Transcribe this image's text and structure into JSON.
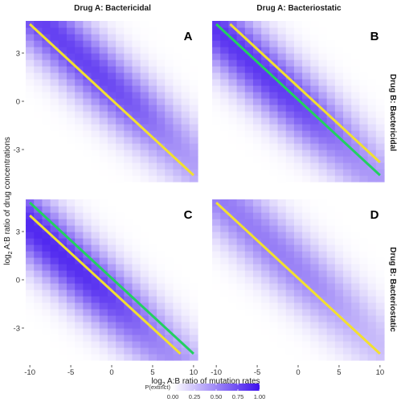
{
  "figure": {
    "col_strips": [
      "Drug A: Bactericidal",
      "Drug A: Bacteriostatic"
    ],
    "row_strips": [
      "Drug B: Bactericidal",
      "Drug B: Bacteriostatic"
    ],
    "xlabel_pre": "log",
    "xlabel_sub": "2",
    "xlabel_post": " A:B ratio of mutation rates",
    "ylabel_pre": "log",
    "ylabel_sub": "2",
    "ylabel_post": " A:B ratio of drug concentrations",
    "legend_title": "P(extinct)"
  },
  "colors": {
    "low": "#ffffff",
    "high": "#3d10ee",
    "yellow_line": "#f2e030",
    "green_line": "#22d060"
  },
  "chart_data": {
    "type": "heatmap",
    "x_ticks": [
      -10,
      -5,
      0,
      5,
      10
    ],
    "x_tick_labels": [
      "-10",
      "-5",
      "0",
      "5",
      "10"
    ],
    "y_ticks": [
      -3,
      0,
      3
    ],
    "y_tick_labels": [
      "-3",
      "0",
      "3"
    ],
    "xlim": [
      -10.7,
      10.7
    ],
    "ylim": [
      -5.3,
      5.3
    ],
    "x_range": [
      -10,
      10
    ],
    "y_range": [
      -4.8,
      4.8
    ],
    "n_x": 21,
    "n_y": 25,
    "legend": {
      "title": "P(extinct)",
      "breaks": [
        0.0,
        0.25,
        0.5,
        0.75,
        1.0
      ],
      "labels": [
        "0.00",
        "0.25",
        "0.50",
        "0.75",
        "1.00"
      ],
      "placement": "bottom"
    },
    "panels": [
      {
        "letter": "A",
        "col": 0,
        "row": 0,
        "shift": 0.9,
        "pmax": 0.8,
        "lines": [
          {
            "color": "yellow",
            "x": [
              -10,
              10
            ],
            "y": [
              4.8,
              -4.6
            ]
          }
        ]
      },
      {
        "letter": "B",
        "col": 1,
        "row": 0,
        "shift": -0.2,
        "pmax": 0.85,
        "lines": [
          {
            "color": "green",
            "x": [
              -10,
              10
            ],
            "y": [
              4.8,
              -4.6
            ]
          },
          {
            "color": "yellow",
            "x": [
              -8.3,
              10
            ],
            "y": [
              4.8,
              -3.8
            ]
          }
        ]
      },
      {
        "letter": "C",
        "col": 0,
        "row": 1,
        "shift": -1.3,
        "pmax": 0.9,
        "lines": [
          {
            "color": "green",
            "x": [
              -10,
              10
            ],
            "y": [
              4.8,
              -4.6
            ]
          },
          {
            "color": "yellow",
            "x": [
              -10,
              8.4
            ],
            "y": [
              4.0,
              -4.6
            ]
          }
        ]
      },
      {
        "letter": "D",
        "col": 1,
        "row": 1,
        "shift": 0.6,
        "pmax": 0.55,
        "lines": [
          {
            "color": "yellow",
            "x": [
              -10,
              10
            ],
            "y": [
              4.8,
              -4.6
            ]
          }
        ]
      }
    ]
  }
}
